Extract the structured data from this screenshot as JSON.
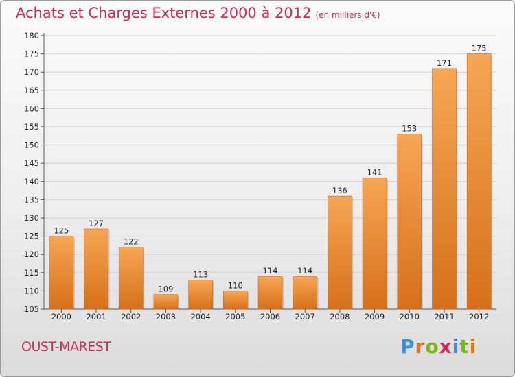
{
  "chart_data": {
    "type": "bar",
    "title": "Achats et Charges Externes 2000 à 2012",
    "subtitle": "(en milliers d'€)",
    "categories": [
      "2000",
      "2001",
      "2002",
      "2003",
      "2004",
      "2005",
      "2006",
      "2007",
      "2008",
      "2009",
      "2010",
      "2011",
      "2012"
    ],
    "values": [
      125,
      127,
      122,
      109,
      113,
      110,
      114,
      114,
      136,
      141,
      153,
      171,
      175
    ],
    "ylim": [
      105,
      180
    ],
    "yticks": [
      105,
      110,
      115,
      120,
      125,
      130,
      135,
      140,
      145,
      150,
      155,
      160,
      165,
      170,
      175,
      180
    ],
    "grid": true,
    "xlabel": "",
    "ylabel": ""
  },
  "footer": {
    "commune": "OUST-MAREST",
    "logo_letters": [
      "P",
      "r",
      "o",
      "x",
      "i",
      "t",
      "i"
    ]
  },
  "colors": {
    "title": "#d22a55",
    "bar_light": "#f6a654",
    "bar_dark": "#d6701a",
    "logo": [
      "#3c8fd8",
      "#e0731c",
      "#7ab51d",
      "#d22a55",
      "#3c8fd8",
      "#7ab51d",
      "#e0731c"
    ]
  }
}
